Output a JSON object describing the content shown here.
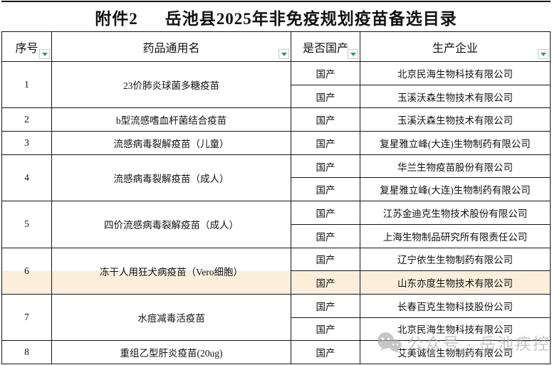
{
  "page": {
    "attachment_label": "附件2",
    "title": "岳池县2025年非免疫规划疫苗备选目录"
  },
  "table": {
    "headers": [
      {
        "label": "序号"
      },
      {
        "label": "药品通用名"
      },
      {
        "label": "是否国产"
      },
      {
        "label": "生产企业"
      }
    ],
    "rows": [
      {
        "no": "1",
        "no_span": 2,
        "drug": "23价肺炎球菌多糖疫苗",
        "drug_span": 2,
        "origin": "国产",
        "maker": "北京民海生物科技有限公司"
      },
      {
        "origin": "国产",
        "maker": "玉溪沃森生物技术有限公司"
      },
      {
        "no": "2",
        "drug": "b型流感嗜血杆菌结合疫苗",
        "origin": "国产",
        "maker": "玉溪沃森生物技术有限公司"
      },
      {
        "no": "3",
        "drug": "流感病毒裂解疫苗（儿童）",
        "origin": "国产",
        "maker": "复星雅立峰(大连)生物制药有限公司"
      },
      {
        "no": "4",
        "no_span": 2,
        "drug": "流感病毒裂解疫苗（成人）",
        "drug_span": 2,
        "origin": "国产",
        "maker": "华兰生物疫苗股份有限公司"
      },
      {
        "origin": "国产",
        "maker": "复星雅立峰(大连)生物制药有限公司"
      },
      {
        "no": "5",
        "no_span": 2,
        "drug": "四价流感病毒裂解疫苗（成人）",
        "drug_span": 2,
        "origin": "国产",
        "maker": "江苏金迪克生物技术股份有限公司"
      },
      {
        "origin": "国产",
        "maker": "上海生物制品研究所有限责任公司"
      },
      {
        "no": "6",
        "no_span": 2,
        "drug": "冻干人用狂犬病疫苗（Vero细胞）",
        "drug_span": 2,
        "origin": "国产",
        "maker": "辽宁依生生物制药有限公司",
        "merged_half_highlight": true
      },
      {
        "origin": "国产",
        "maker": "山东亦度生物技术有限公司",
        "highlight": true
      },
      {
        "no": "7",
        "no_span": 2,
        "drug": "水痘减毒活疫苗",
        "drug_span": 2,
        "origin": "国产",
        "maker": "长春百克生物科技股份公司"
      },
      {
        "origin": "国产",
        "maker": "北京民海生物科技有限公司"
      },
      {
        "no": "8",
        "drug": "重组乙型肝炎疫苗(20ug)",
        "origin": "国产",
        "maker": "艾美诚信生物制药有限公司"
      }
    ]
  },
  "watermark": {
    "icon": "wechat-icon",
    "text": "公众号 · 岳池疾控"
  },
  "colors": {
    "highlight_row": "#FBEEDB",
    "filter_accent": "#2E9B62",
    "border": "#151515",
    "watermark_gray": "#a6a6a6"
  }
}
